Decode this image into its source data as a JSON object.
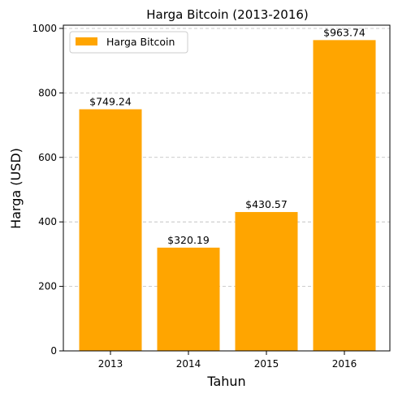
{
  "chart_data": {
    "type": "bar",
    "title": "Harga Bitcoin (2013-2016)",
    "xlabel": "Tahun",
    "ylabel": "Harga (USD)",
    "categories": [
      "2013",
      "2014",
      "2015",
      "2016"
    ],
    "series": [
      {
        "name": "Harga Bitcoin",
        "values": [
          749.24,
          320.19,
          430.57,
          963.74
        ],
        "data_labels": [
          "$749.24",
          "$320.19",
          "$430.57",
          "$963.74"
        ],
        "color": "#FFA500"
      }
    ],
    "ylim": [
      0,
      1010
    ],
    "yticks": [
      0,
      200,
      400,
      600,
      800,
      1000
    ],
    "grid": "y-dashed",
    "legend_position": "top-left"
  }
}
